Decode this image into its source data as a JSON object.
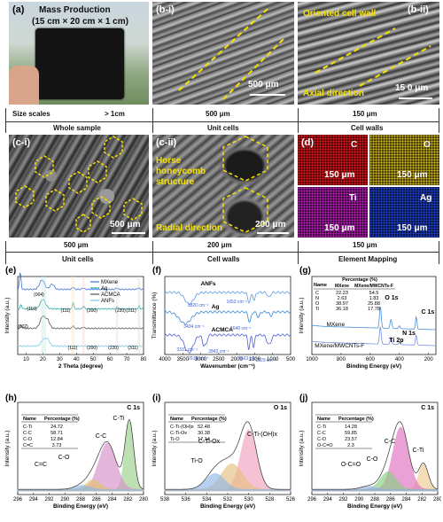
{
  "panels": {
    "a": {
      "label": "(a)",
      "title1": "Mass Production",
      "title2": "(15 cm × 20 cm × 1 cm)"
    },
    "b1": {
      "label": "(b-i)",
      "scale": "500 μm"
    },
    "b2": {
      "label": "(b-ii)",
      "text1": "Oriented cell wall",
      "text2": "Axial direction",
      "scale": "15 0 μm"
    },
    "c1": {
      "label": "(c-i)",
      "scale": "500 μm"
    },
    "c2": {
      "label": "(c-ii)",
      "text1": "Horse",
      "text2": "honeycomb",
      "text3": "structure",
      "text4": "Radial direction",
      "scale": "200 μm"
    },
    "d": {
      "label": "(d)",
      "maps": [
        {
          "el": "C",
          "scale": "150 μm",
          "color": "#d8161b"
        },
        {
          "el": "O",
          "scale": "150 μm",
          "color": "#c8b21a"
        },
        {
          "el": "Ti",
          "scale": "150 μm",
          "color": "#b020b0"
        },
        {
          "el": "Ag",
          "scale": "150 μm",
          "color": "#2040c8"
        }
      ]
    }
  },
  "scale_row1": {
    "label": "Size scales",
    "v1": "> 1cm",
    "v2": "500 μm",
    "v3": "150 μm",
    "c1": "Whole sample",
    "c2": "Unit cells",
    "c3": "Cell walls"
  },
  "scale_row2": {
    "v1": "500 μm",
    "v2": "200 μm",
    "v3": "150 μm",
    "c1": "Unit cells",
    "c2": "Cell walls",
    "c3": "Element Mapping"
  },
  "chart_data": [
    {
      "panel": "(e)",
      "type": "line",
      "xlabel": "2 Theta (degree)",
      "ylabel": "Intensity (a.u.)",
      "xlim": [
        5,
        80
      ],
      "xticks": [
        "10",
        "20",
        "30",
        "40",
        "50",
        "60",
        "70",
        "80"
      ],
      "series": [
        {
          "name": "MXene",
          "color": "#3a6fd8"
        },
        {
          "name": "Ag",
          "color": "#2ba6a0"
        },
        {
          "name": "ACMCA",
          "color": "#555555"
        },
        {
          "name": "ANFs",
          "color": "#7ac6e8"
        }
      ],
      "annotations": [
        "(004)",
        "(110)",
        "(002)",
        "(111)",
        "(200)",
        "(220)",
        "(311)",
        "(111)",
        "(200)",
        "(220)",
        "(311)"
      ]
    },
    {
      "panel": "(f)",
      "type": "line",
      "xlabel": "Wavenumber (cm⁻¹)",
      "ylabel": "Transmittance (%)",
      "xlim": [
        4000,
        500
      ],
      "xticks": [
        "4000",
        "3500",
        "3000",
        "2500",
        "2000",
        "1500",
        "1000",
        "500"
      ],
      "series": [
        {
          "name": "ANFs",
          "color": "#5a9be0"
        },
        {
          "name": "Ag",
          "color": "#3a86d0"
        },
        {
          "name": "ACMCA",
          "color": "#4a5fd0"
        }
      ],
      "annotations": [
        "3320 cm⁻¹",
        "1653 cm⁻¹",
        "1640 cm⁻¹",
        "3434 cm⁻¹",
        "3331 cm⁻¹",
        "2918 cm⁻¹",
        "2843 cm⁻¹",
        "1663 cm⁻¹",
        "1529 cm⁻¹"
      ]
    },
    {
      "panel": "(g)",
      "type": "line",
      "xlabel": "Binding Energy (eV)",
      "ylabel": "Intensity (a.u.)",
      "xlim": [
        1000,
        150
      ],
      "xticks": [
        "1000",
        "800",
        "600",
        "400",
        "200"
      ],
      "series": [
        {
          "name": "MXene",
          "color": "#4a8fd8"
        },
        {
          "name": "MXene/MWCNTs-F",
          "color": "#7a90e0"
        }
      ],
      "annotations": [
        "O 1s",
        "C 1s",
        "N 1s",
        "Ti 2p"
      ],
      "table": {
        "header": [
          "Name",
          "Percentage (%)"
        ],
        "subheader": [
          "",
          "MXene",
          "MXene/MWCNTs-F"
        ],
        "rows": [
          [
            "C",
            "22.23",
            "54.5"
          ],
          [
            "N",
            "2.63",
            "1.83"
          ],
          [
            "O",
            "38.97",
            "25.88"
          ],
          [
            "Ti",
            "36.18",
            "17.78"
          ]
        ]
      }
    },
    {
      "panel": "(h)",
      "type": "area",
      "title": "C 1s",
      "xlabel": "Binding Energy (eV)",
      "ylabel": "Intensity (a.u.)",
      "xlim": [
        296,
        280
      ],
      "xticks": [
        "296",
        "294",
        "292",
        "290",
        "288",
        "286",
        "284",
        "282",
        "280"
      ],
      "series": [
        {
          "name": "C-Ti",
          "center": 281.8,
          "amp": 0.85,
          "width": 0.55,
          "color": "#9bd08a"
        },
        {
          "name": "C-C",
          "center": 284.6,
          "amp": 0.58,
          "width": 1.1,
          "color": "#d890c8"
        },
        {
          "name": "C-O",
          "center": 286.4,
          "amp": 0.12,
          "width": 0.9,
          "color": "#e8c070"
        },
        {
          "name": "C=C",
          "center": 287.8,
          "amp": 0.05,
          "width": 1.0,
          "color": "#8ab8e8"
        }
      ],
      "table": {
        "header": [
          "Name",
          "Percentage (%)"
        ],
        "rows": [
          [
            "C-Ti",
            "24.72"
          ],
          [
            "C-C",
            "58.71"
          ],
          [
            "C-O",
            "12.84"
          ],
          [
            "C=C",
            "3.73"
          ]
        ]
      }
    },
    {
      "panel": "(i)",
      "type": "area",
      "title": "O 1s",
      "xlabel": "Binding Energy (eV)",
      "ylabel": "Intensity (a.u.)",
      "xlim": [
        538,
        526
      ],
      "xticks": [
        "538",
        "536",
        "534",
        "532",
        "530",
        "528",
        "526"
      ],
      "series": [
        {
          "name": "C-Ti-(OH)x",
          "center": 530.0,
          "amp": 0.75,
          "width": 0.75,
          "color": "#f0a0c0"
        },
        {
          "name": "C-Ti-Ox",
          "center": 531.6,
          "amp": 0.32,
          "width": 1.0,
          "color": "#e8c080"
        },
        {
          "name": "Ti-O",
          "center": 533.2,
          "amp": 0.2,
          "width": 0.9,
          "color": "#90b8e8"
        }
      ],
      "table": {
        "header": [
          "Name",
          "Percentage (%)"
        ],
        "rows": [
          [
            "C-Ti-(OH)x",
            "52.48"
          ],
          [
            "C-Ti-Ox",
            "30.38"
          ],
          [
            "Ti-O",
            "17.14"
          ]
        ]
      }
    },
    {
      "panel": "(j)",
      "type": "area",
      "title": "C 1s",
      "xlabel": "Binding Energy (eV)",
      "ylabel": "Intensity (a.u.)",
      "xlim": [
        296,
        280
      ],
      "xticks": [
        "296",
        "294",
        "292",
        "290",
        "288",
        "286",
        "284",
        "282",
        "280"
      ],
      "series": [
        {
          "name": "C-Ti",
          "center": 281.8,
          "amp": 0.32,
          "width": 0.6,
          "color": "#f0c890"
        },
        {
          "name": "C-C",
          "center": 284.7,
          "amp": 0.78,
          "width": 1.0,
          "color": "#e070c0"
        },
        {
          "name": "C-O",
          "center": 286.3,
          "amp": 0.22,
          "width": 1.0,
          "color": "#88d080"
        },
        {
          "name": "O-C=O",
          "center": 288.8,
          "amp": 0.04,
          "width": 1.0,
          "color": "#9ab0e8"
        }
      ],
      "table": {
        "header": [
          "Name",
          "Percentage (%)"
        ],
        "rows": [
          [
            "C-Ti",
            "14.28"
          ],
          [
            "C-C",
            "59.85"
          ],
          [
            "C-O",
            "23.57"
          ],
          [
            "O-C=O",
            "2.3"
          ]
        ]
      }
    }
  ]
}
